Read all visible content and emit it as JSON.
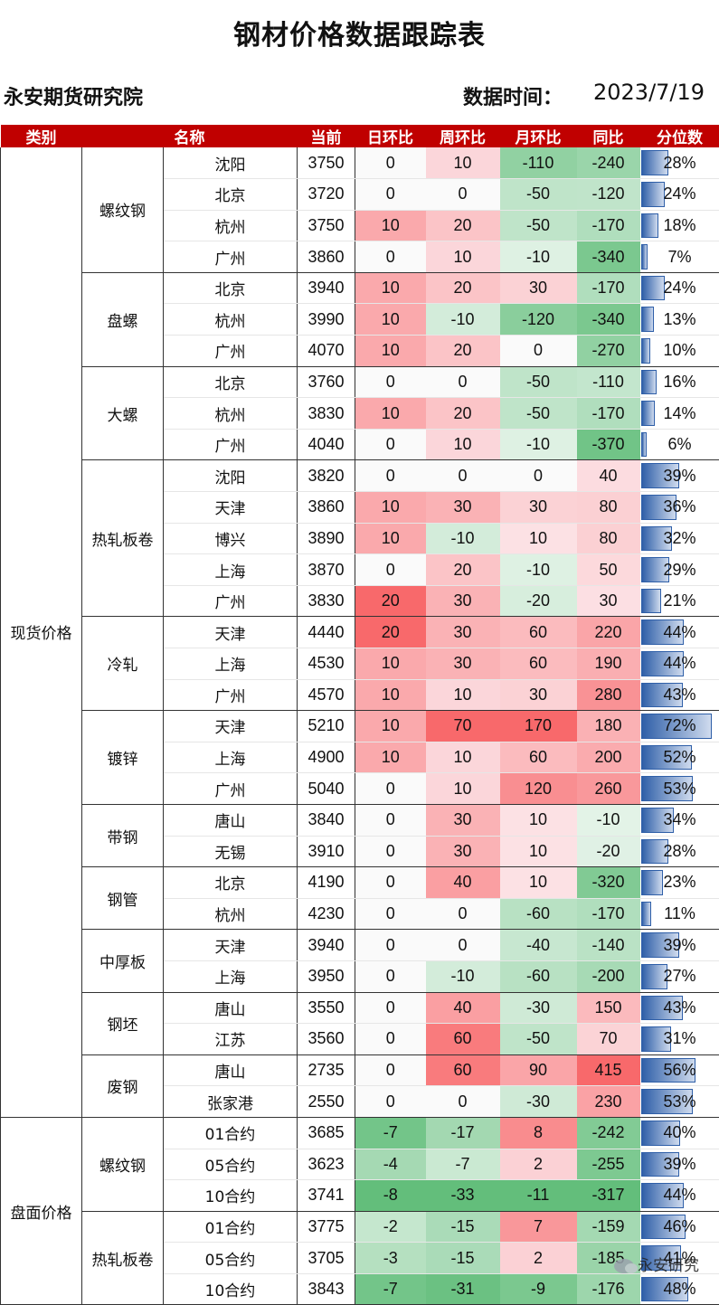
{
  "title": "钢材价格数据跟踪表",
  "org": "永安期货研究院",
  "date_label": "数据时间：",
  "date_value": "2023/7/19",
  "headers": [
    "类别",
    "名称",
    "当前",
    "日环比",
    "周环比",
    "月环比",
    "同比",
    "分位数"
  ],
  "watermark": "永安研究",
  "categories": [
    {
      "name": "现货价格",
      "products": [
        {
          "name": "螺纹钢",
          "rows": [
            {
              "loc": "沈阳",
              "cur": "3750",
              "d": "0",
              "w": "10",
              "m": "-110",
              "y": "-240",
              "pct": "28%"
            },
            {
              "loc": "北京",
              "cur": "3720",
              "d": "0",
              "w": "0",
              "m": "-50",
              "y": "-120",
              "pct": "24%"
            },
            {
              "loc": "杭州",
              "cur": "3750",
              "d": "10",
              "w": "20",
              "m": "-50",
              "y": "-170",
              "pct": "18%"
            },
            {
              "loc": "广州",
              "cur": "3860",
              "d": "0",
              "w": "10",
              "m": "-10",
              "y": "-340",
              "pct": "7%"
            }
          ]
        },
        {
          "name": "盘螺",
          "rows": [
            {
              "loc": "北京",
              "cur": "3940",
              "d": "10",
              "w": "20",
              "m": "30",
              "y": "-170",
              "pct": "24%"
            },
            {
              "loc": "杭州",
              "cur": "3990",
              "d": "10",
              "w": "-10",
              "m": "-120",
              "y": "-340",
              "pct": "13%"
            },
            {
              "loc": "广州",
              "cur": "4070",
              "d": "10",
              "w": "20",
              "m": "0",
              "y": "-270",
              "pct": "10%"
            }
          ]
        },
        {
          "name": "大螺",
          "rows": [
            {
              "loc": "北京",
              "cur": "3760",
              "d": "0",
              "w": "0",
              "m": "-50",
              "y": "-110",
              "pct": "16%"
            },
            {
              "loc": "杭州",
              "cur": "3830",
              "d": "10",
              "w": "20",
              "m": "-50",
              "y": "-170",
              "pct": "14%"
            },
            {
              "loc": "广州",
              "cur": "4040",
              "d": "0",
              "w": "10",
              "m": "-10",
              "y": "-370",
              "pct": "6%"
            }
          ]
        },
        {
          "name": "热轧板卷",
          "rows": [
            {
              "loc": "沈阳",
              "cur": "3820",
              "d": "0",
              "w": "0",
              "m": "0",
              "y": "40",
              "pct": "39%"
            },
            {
              "loc": "天津",
              "cur": "3860",
              "d": "10",
              "w": "30",
              "m": "30",
              "y": "80",
              "pct": "36%"
            },
            {
              "loc": "博兴",
              "cur": "3890",
              "d": "10",
              "w": "-10",
              "m": "10",
              "y": "80",
              "pct": "32%"
            },
            {
              "loc": "上海",
              "cur": "3870",
              "d": "0",
              "w": "20",
              "m": "-10",
              "y": "50",
              "pct": "29%"
            },
            {
              "loc": "广州",
              "cur": "3830",
              "d": "20",
              "w": "30",
              "m": "-20",
              "y": "30",
              "pct": "21%"
            }
          ]
        },
        {
          "name": "冷轧",
          "rows": [
            {
              "loc": "天津",
              "cur": "4440",
              "d": "20",
              "w": "30",
              "m": "60",
              "y": "220",
              "pct": "44%"
            },
            {
              "loc": "上海",
              "cur": "4530",
              "d": "10",
              "w": "30",
              "m": "60",
              "y": "190",
              "pct": "44%"
            },
            {
              "loc": "广州",
              "cur": "4570",
              "d": "10",
              "w": "10",
              "m": "30",
              "y": "280",
              "pct": "43%"
            }
          ]
        },
        {
          "name": "镀锌",
          "rows": [
            {
              "loc": "天津",
              "cur": "5210",
              "d": "10",
              "w": "70",
              "m": "170",
              "y": "180",
              "pct": "72%"
            },
            {
              "loc": "上海",
              "cur": "4900",
              "d": "10",
              "w": "10",
              "m": "60",
              "y": "200",
              "pct": "52%"
            },
            {
              "loc": "广州",
              "cur": "5040",
              "d": "0",
              "w": "10",
              "m": "120",
              "y": "260",
              "pct": "53%"
            }
          ]
        },
        {
          "name": "带钢",
          "rows": [
            {
              "loc": "唐山",
              "cur": "3840",
              "d": "0",
              "w": "30",
              "m": "10",
              "y": "-10",
              "pct": "34%"
            },
            {
              "loc": "无锡",
              "cur": "3910",
              "d": "0",
              "w": "30",
              "m": "10",
              "y": "-20",
              "pct": "28%"
            }
          ]
        },
        {
          "name": "钢管",
          "rows": [
            {
              "loc": "北京",
              "cur": "4190",
              "d": "0",
              "w": "40",
              "m": "10",
              "y": "-320",
              "pct": "23%"
            },
            {
              "loc": "杭州",
              "cur": "4230",
              "d": "0",
              "w": "0",
              "m": "-60",
              "y": "-170",
              "pct": "11%"
            }
          ]
        },
        {
          "name": "中厚板",
          "rows": [
            {
              "loc": "天津",
              "cur": "3940",
              "d": "0",
              "w": "0",
              "m": "-40",
              "y": "-140",
              "pct": "39%"
            },
            {
              "loc": "上海",
              "cur": "3950",
              "d": "0",
              "w": "-10",
              "m": "-60",
              "y": "-200",
              "pct": "27%"
            }
          ]
        },
        {
          "name": "钢坯",
          "rows": [
            {
              "loc": "唐山",
              "cur": "3550",
              "d": "0",
              "w": "40",
              "m": "-30",
              "y": "150",
              "pct": "43%"
            },
            {
              "loc": "江苏",
              "cur": "3560",
              "d": "0",
              "w": "60",
              "m": "-50",
              "y": "70",
              "pct": "31%"
            }
          ]
        },
        {
          "name": "废钢",
          "rows": [
            {
              "loc": "唐山",
              "cur": "2735",
              "d": "0",
              "w": "60",
              "m": "90",
              "y": "415",
              "pct": "56%"
            },
            {
              "loc": "张家港",
              "cur": "2550",
              "d": "0",
              "w": "0",
              "m": "-30",
              "y": "230",
              "pct": "53%"
            }
          ]
        }
      ]
    },
    {
      "name": "盘面价格",
      "products": [
        {
          "name": "螺纹钢",
          "rows": [
            {
              "loc": "01合约",
              "cur": "3685",
              "d": "-7",
              "w": "-17",
              "m": "8",
              "y": "-242",
              "pct": "40%"
            },
            {
              "loc": "05合约",
              "cur": "3623",
              "d": "-4",
              "w": "-7",
              "m": "2",
              "y": "-255",
              "pct": "39%"
            },
            {
              "loc": "10合约",
              "cur": "3741",
              "d": "-8",
              "w": "-33",
              "m": "-11",
              "y": "-317",
              "pct": "44%"
            }
          ]
        },
        {
          "name": "热轧板卷",
          "rows": [
            {
              "loc": "01合约",
              "cur": "3775",
              "d": "-2",
              "w": "-15",
              "m": "7",
              "y": "-159",
              "pct": "46%"
            },
            {
              "loc": "05合约",
              "cur": "3705",
              "d": "-3",
              "w": "-15",
              "m": "2",
              "y": "-185",
              "pct": "41%"
            },
            {
              "loc": "10合约",
              "cur": "3843",
              "d": "-7",
              "w": "-31",
              "m": "-9",
              "y": "-176",
              "pct": "48%"
            }
          ]
        }
      ]
    }
  ]
}
